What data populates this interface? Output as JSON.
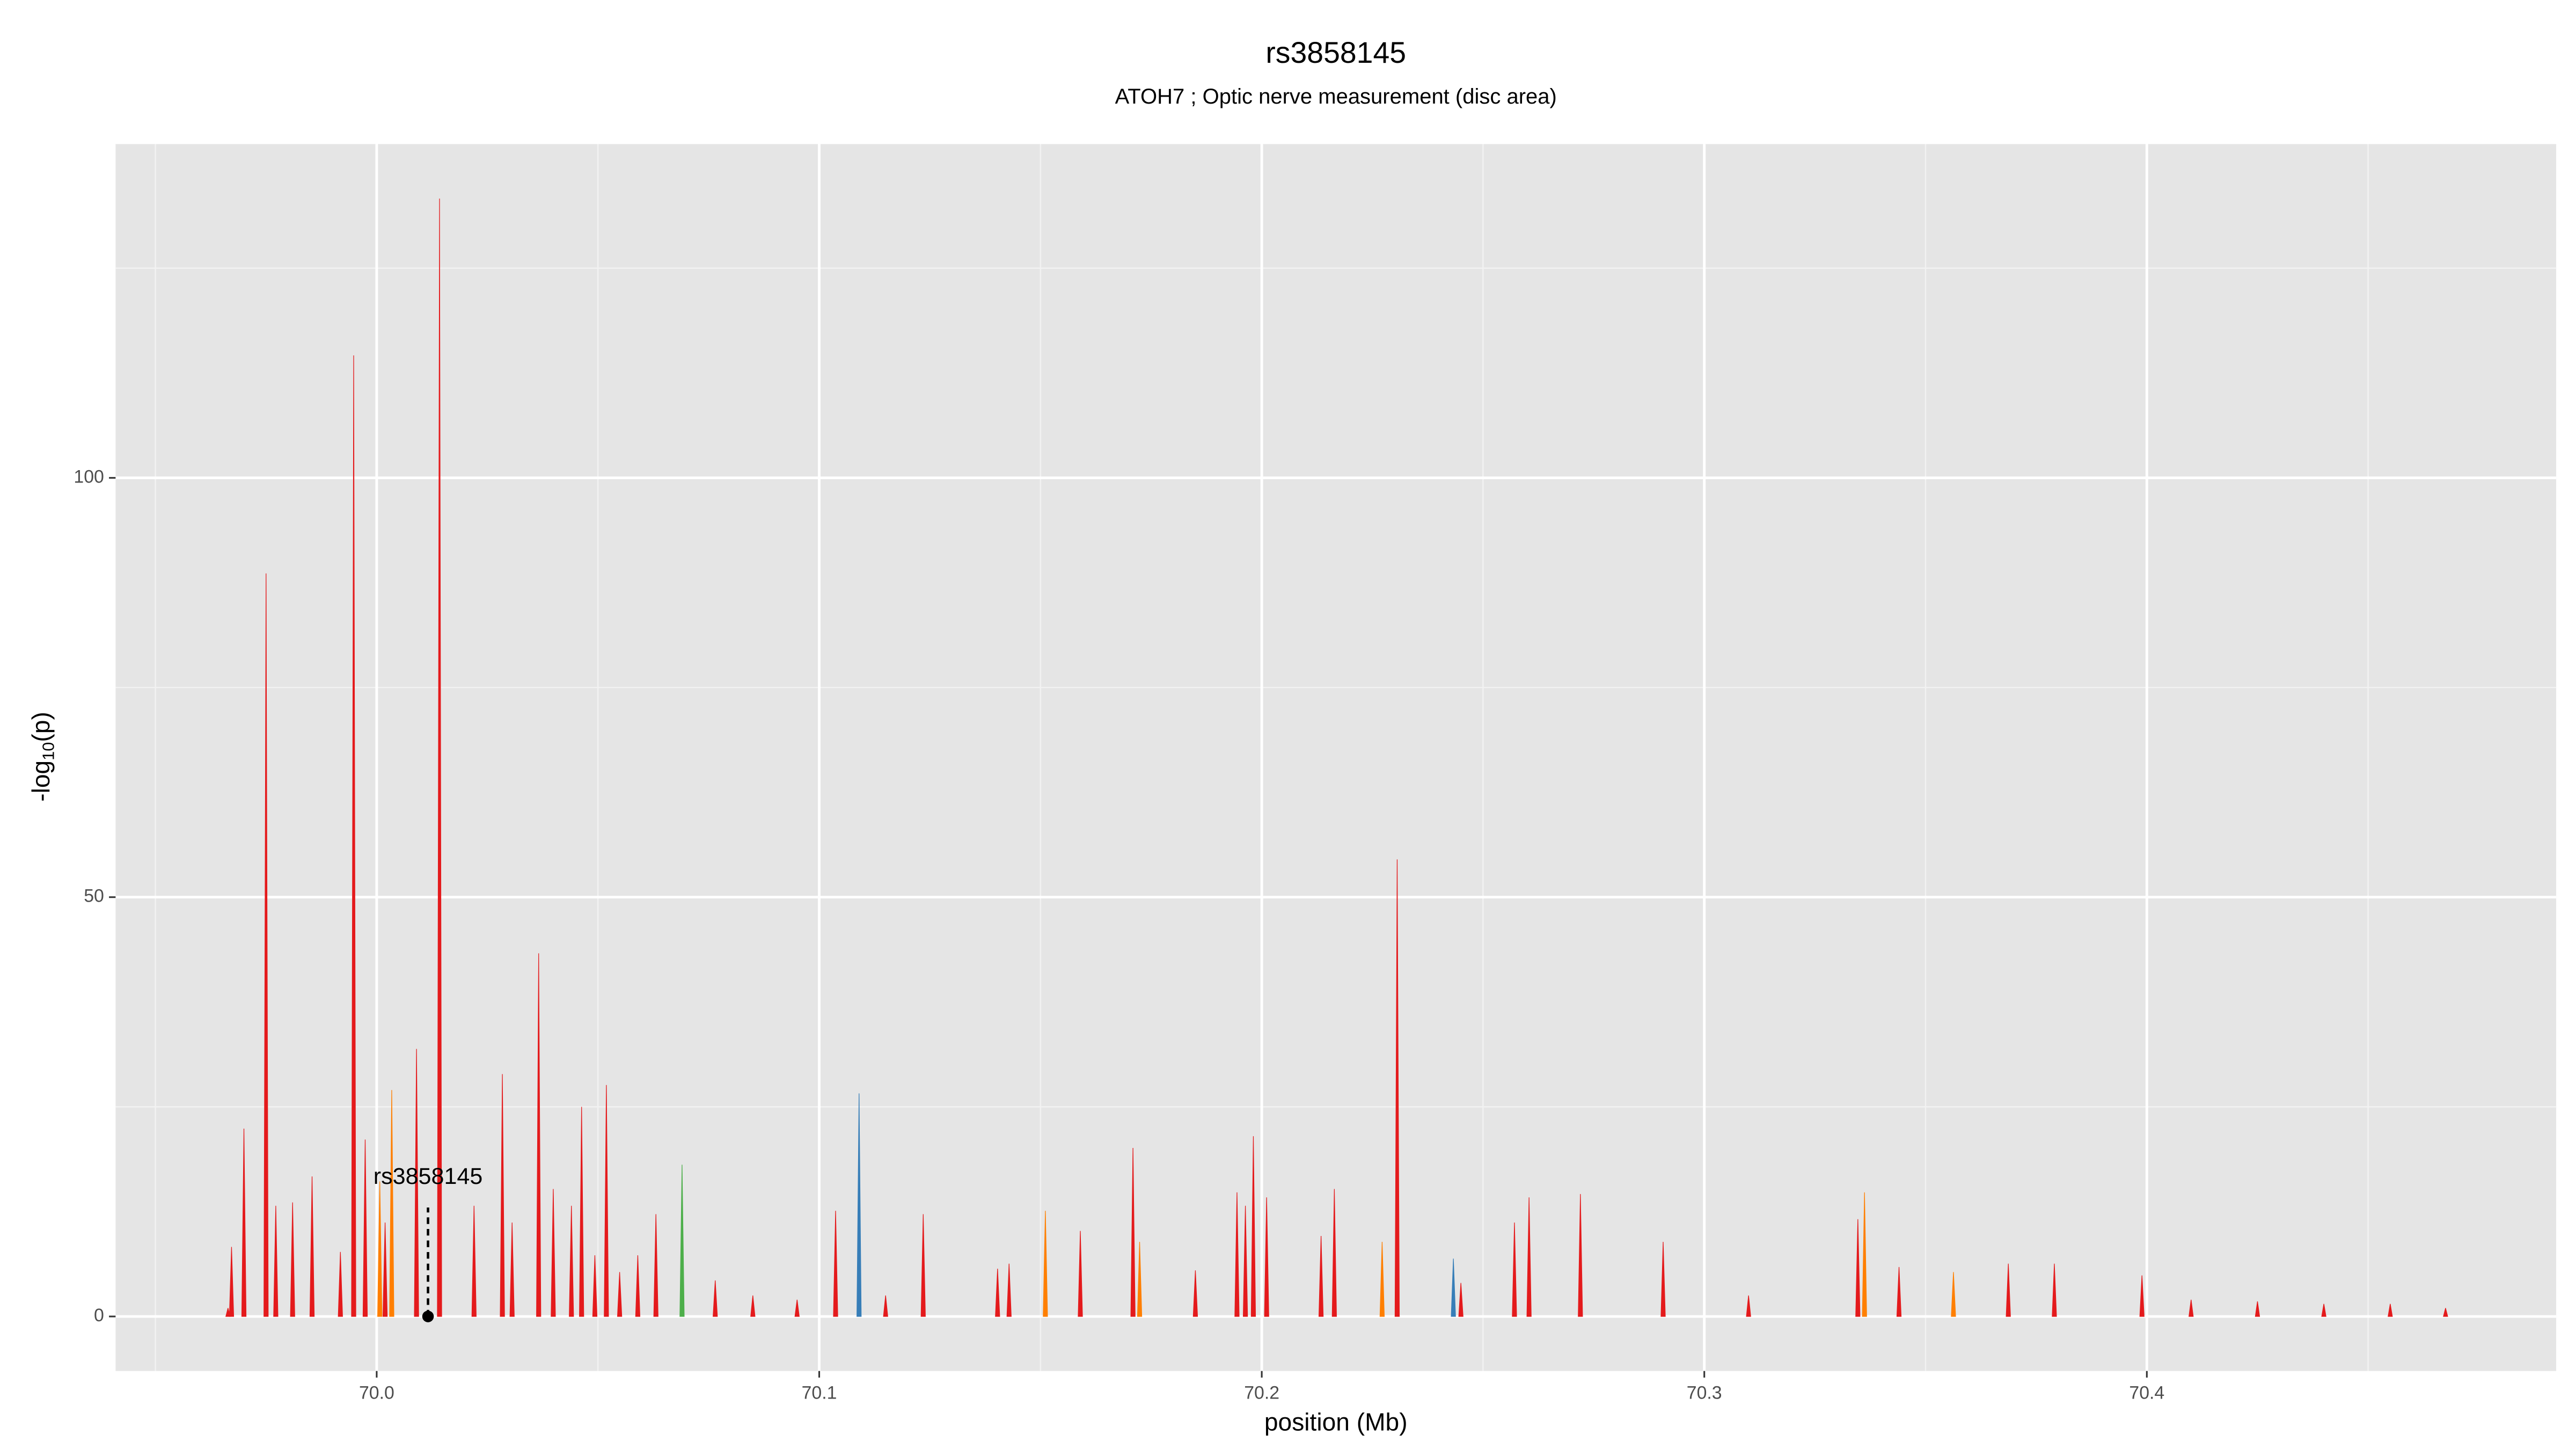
{
  "chart_data": {
    "type": "spike",
    "title": "rs3858145",
    "subtitle": "ATOH7 ; Optic nerve measurement (disc area)",
    "x_label": "position (Mb)",
    "y_label": [
      "-log",
      "10",
      "(p)"
    ],
    "xlim": [
      69.941,
      70.4925
    ],
    "ylim": [
      -6.5,
      139.8
    ],
    "xticks": [
      {
        "value": 70.0,
        "label": "70.0"
      },
      70.1,
      70.2,
      70.3,
      70.4
    ],
    "yticks": [
      0,
      50,
      100
    ],
    "x_minor_ticks": [
      69.95,
      70.05,
      70.15,
      70.25,
      70.35,
      70.45
    ],
    "y_minor_ticks": [
      25,
      75,
      125
    ],
    "grid": true,
    "annotation": {
      "label": "rs3858145",
      "x": 70.0116,
      "y": 0
    },
    "series": [
      {
        "color": "#e41a1c",
        "x": [
          69.9664,
          69.9672,
          69.97,
          69.975,
          69.9772,
          69.981,
          69.9854,
          69.9918,
          69.9948,
          69.9974,
          70.0019,
          70.009,
          70.0142,
          70.022,
          70.0284,
          70.0306,
          70.0366,
          70.0399,
          70.044,
          70.0463,
          70.0493,
          70.0519,
          70.0549,
          70.059,
          70.0631,
          70.0765,
          70.085,
          70.095,
          70.1037,
          70.115,
          70.1235,
          70.1403,
          70.1429,
          70.159,
          70.1709,
          70.185,
          70.1944,
          70.1963,
          70.1981,
          70.2011,
          70.2134,
          70.2164,
          70.2306,
          70.245,
          70.2571,
          70.2604,
          70.272,
          70.2907,
          70.31,
          70.3347,
          70.344,
          70.3687,
          70.3791,
          70.3989,
          70.41,
          70.425,
          70.44,
          70.455,
          70.4675
        ],
        "values": [
          1,
          8.3,
          22.4,
          88.6,
          13.2,
          13.6,
          16.7,
          7.7,
          114.6,
          21.1,
          11.2,
          31.9,
          133.3,
          13.2,
          28.9,
          11.2,
          43.3,
          15.2,
          13.2,
          25.0,
          7.3,
          27.6,
          5.3,
          7.3,
          12.2,
          4.3,
          2.5,
          2,
          12.6,
          2.5,
          12.2,
          5.7,
          6.3,
          10.2,
          20.1,
          5.5,
          14.8,
          13.2,
          21.5,
          14.2,
          9.6,
          15.2,
          54.5,
          4,
          11.2,
          14.2,
          14.6,
          8.9,
          2.5,
          11.6,
          5.9,
          6.3,
          6.3,
          4.9,
          2,
          1.8,
          1.5,
          1.5,
          1
        ]
      },
      {
        "color": "#ff7f00",
        "x": [
          70.0007,
          70.0034,
          70.1511,
          70.1724,
          70.2272,
          70.3362,
          70.3563
        ],
        "values": [
          16.1,
          27.0,
          12.6,
          8.9,
          8.9,
          14.8,
          5.3
        ]
      },
      {
        "color": "#377eb8",
        "x": [
          70.109,
          70.2433
        ],
        "values": [
          26.6,
          6.9
        ]
      },
      {
        "color": "#4daf4a",
        "x": [
          70.069
        ],
        "values": [
          18.1
        ]
      }
    ]
  }
}
